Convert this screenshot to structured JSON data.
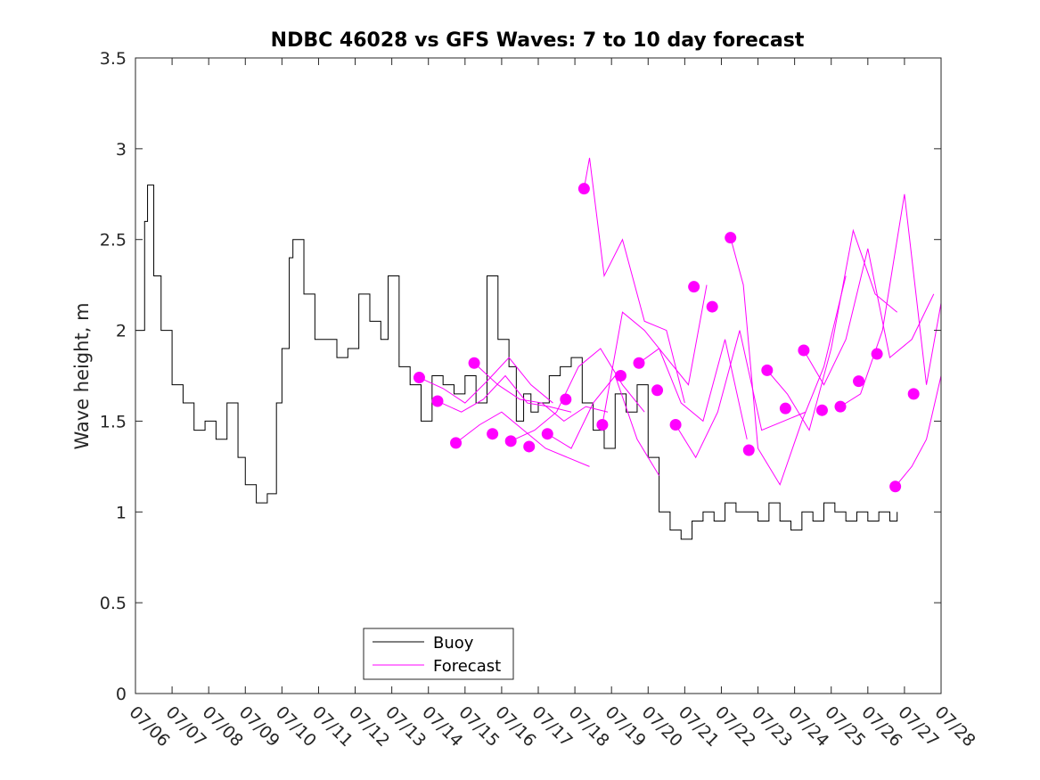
{
  "chart_data": {
    "type": "line",
    "title": "NDBC 46028 vs GFS Waves: 7 to 10 day forecast",
    "xlabel": "",
    "ylabel": "Wave height, m",
    "ylim": [
      0,
      3.5
    ],
    "yticks": [
      "0",
      "0.5",
      "1",
      "1.5",
      "2",
      "2.5",
      "3",
      "3.5"
    ],
    "xlim": [
      "07/06",
      "07/28"
    ],
    "xticks": [
      "07/06",
      "07/07",
      "07/08",
      "07/09",
      "07/10",
      "07/11",
      "07/12",
      "07/13",
      "07/14",
      "07/15",
      "07/16",
      "07/17",
      "07/18",
      "07/19",
      "07/20",
      "07/21",
      "07/22",
      "07/23",
      "07/24",
      "07/25",
      "07/26",
      "07/27",
      "07/28"
    ],
    "grid": false,
    "legend_position": "bottom-center",
    "colors": {
      "buoy": "#000000",
      "forecast": "#ff00ff"
    },
    "series": [
      {
        "name": "Buoy",
        "x": [
          0.0,
          0.25,
          0.33,
          0.5,
          0.7,
          1.0,
          1.3,
          1.6,
          1.9,
          2.2,
          2.5,
          2.8,
          3.0,
          3.3,
          3.6,
          3.85,
          4.0,
          4.2,
          4.3,
          4.6,
          4.9,
          5.2,
          5.5,
          5.8,
          6.1,
          6.4,
          6.7,
          6.9,
          7.2,
          7.5,
          7.8,
          8.1,
          8.4,
          8.7,
          9.0,
          9.3,
          9.6,
          9.9,
          10.2,
          10.4,
          10.6,
          10.8,
          11.0,
          11.3,
          11.6,
          11.9,
          12.2,
          12.5,
          12.8,
          13.1,
          13.4,
          13.7,
          14.0,
          14.3,
          14.6,
          14.9,
          15.2,
          15.5,
          15.8,
          16.1,
          16.4,
          16.7,
          17.0,
          17.3,
          17.6,
          17.9,
          18.2,
          18.5,
          18.8,
          19.1,
          19.4,
          19.7,
          20.0,
          20.3,
          20.6,
          20.8
        ],
        "values": [
          2.0,
          2.6,
          2.8,
          2.3,
          2.0,
          1.7,
          1.6,
          1.45,
          1.5,
          1.4,
          1.6,
          1.3,
          1.15,
          1.05,
          1.1,
          1.6,
          1.9,
          2.4,
          2.5,
          2.2,
          1.95,
          1.95,
          1.85,
          1.9,
          2.2,
          2.05,
          1.95,
          2.3,
          1.8,
          1.7,
          1.5,
          1.75,
          1.7,
          1.65,
          1.75,
          1.6,
          2.3,
          1.95,
          1.8,
          1.5,
          1.65,
          1.55,
          1.6,
          1.75,
          1.8,
          1.85,
          1.6,
          1.45,
          1.35,
          1.65,
          1.55,
          1.7,
          1.3,
          1.0,
          0.9,
          0.85,
          0.95,
          1.0,
          0.95,
          1.05,
          1.0,
          1.0,
          0.95,
          1.05,
          0.95,
          0.9,
          1.0,
          0.95,
          1.05,
          1.0,
          0.95,
          1.0,
          0.95,
          1.0,
          0.95,
          1.0
        ]
      },
      {
        "name": "Forecast",
        "points_x": [
          7.75,
          8.25,
          8.75,
          9.25,
          9.75,
          10.25,
          10.75,
          11.25,
          11.75,
          12.25,
          12.75,
          13.25,
          13.75,
          14.25,
          14.75,
          15.25,
          15.75,
          16.25,
          16.75,
          17.25,
          17.75,
          18.25,
          18.75,
          19.25,
          19.75,
          20.25,
          20.75,
          21.25
        ],
        "points_y": [
          1.74,
          1.61,
          1.38,
          1.82,
          1.43,
          1.39,
          1.36,
          1.43,
          1.62,
          2.78,
          1.48,
          1.75,
          1.82,
          1.67,
          1.48,
          2.24,
          2.13,
          2.51,
          1.34,
          1.78,
          1.57,
          1.89,
          1.56,
          1.58,
          1.72,
          1.87,
          1.14,
          1.65
        ],
        "lines": [
          {
            "x": [
              7.75,
              8.4,
              9.0,
              9.6,
              10.2,
              10.8,
              11.4
            ],
            "values": [
              1.74,
              1.68,
              1.6,
              1.72,
              1.85,
              1.7,
              1.6
            ]
          },
          {
            "x": [
              8.25,
              8.9,
              9.5,
              10.1,
              10.7,
              11.3,
              11.9
            ],
            "values": [
              1.61,
              1.55,
              1.62,
              1.75,
              1.6,
              1.58,
              1.55
            ]
          },
          {
            "x": [
              8.75,
              9.4,
              10.0,
              10.6,
              11.2,
              11.8,
              12.4
            ],
            "values": [
              1.38,
              1.48,
              1.55,
              1.45,
              1.35,
              1.3,
              1.25
            ]
          },
          {
            "x": [
              9.25,
              9.9,
              10.5,
              11.1,
              11.7,
              12.3,
              12.9
            ],
            "values": [
              1.82,
              1.7,
              1.62,
              1.6,
              1.5,
              1.58,
              1.55
            ]
          },
          {
            "x": [
              10.25,
              10.9,
              11.5,
              12.1,
              12.7,
              13.3,
              13.9
            ],
            "values": [
              1.39,
              1.45,
              1.55,
              1.8,
              1.9,
              1.7,
              1.55
            ]
          },
          {
            "x": [
              11.25,
              11.9,
              12.5,
              13.1,
              13.7,
              14.3
            ],
            "values": [
              1.43,
              1.35,
              1.6,
              1.75,
              1.4,
              1.2
            ]
          },
          {
            "x": [
              12.25,
              12.4,
              12.8,
              13.3,
              13.9,
              14.5,
              15.0
            ],
            "values": [
              2.78,
              2.95,
              2.3,
              2.5,
              2.05,
              2.0,
              1.6
            ]
          },
          {
            "x": [
              12.75,
              13.3,
              13.9,
              14.5,
              15.1,
              15.6
            ],
            "values": [
              1.48,
              2.1,
              2.0,
              1.85,
              1.7,
              2.25
            ]
          },
          {
            "x": [
              13.75,
              14.3,
              14.9,
              15.5,
              16.1,
              16.7
            ],
            "values": [
              1.82,
              1.9,
              1.6,
              1.5,
              1.95,
              1.4
            ]
          },
          {
            "x": [
              14.75,
              15.3,
              15.9,
              16.5,
              17.1,
              17.7,
              18.3
            ],
            "values": [
              1.48,
              1.3,
              1.55,
              2.0,
              1.45,
              1.5,
              1.55
            ]
          },
          {
            "x": [
              16.25,
              16.6,
              17.0,
              17.6,
              18.2,
              18.8,
              19.4
            ],
            "values": [
              2.51,
              2.25,
              1.35,
              1.15,
              1.5,
              1.8,
              2.3
            ]
          },
          {
            "x": [
              17.25,
              17.8,
              18.4,
              19.0,
              19.6,
              20.2,
              20.8
            ],
            "values": [
              1.78,
              1.65,
              1.45,
              1.9,
              2.55,
              2.2,
              2.1
            ]
          },
          {
            "x": [
              18.25,
              18.8,
              19.4,
              20.0,
              20.6,
              21.2,
              21.8
            ],
            "values": [
              1.89,
              1.7,
              1.95,
              2.45,
              1.85,
              1.95,
              2.2
            ]
          },
          {
            "x": [
              19.25,
              19.8,
              20.4,
              21.0,
              21.6,
              22.0
            ],
            "values": [
              1.58,
              1.65,
              2.0,
              2.75,
              1.7,
              2.15
            ]
          },
          {
            "x": [
              20.75,
              21.2,
              21.6,
              22.0
            ],
            "values": [
              1.14,
              1.25,
              1.4,
              1.75
            ]
          }
        ]
      }
    ]
  },
  "legend": {
    "items": [
      {
        "label": "Buoy",
        "color": "#000000"
      },
      {
        "label": "Forecast",
        "color": "#ff00ff"
      }
    ]
  }
}
